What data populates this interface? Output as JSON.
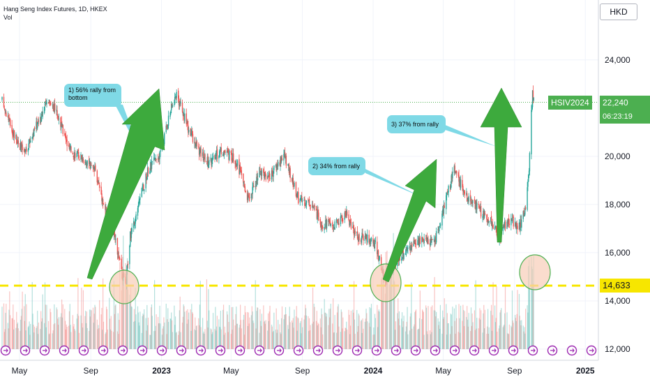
{
  "header": {
    "symbol_title": "Hang Seng Index Futures, 1D, HKEX",
    "volume_label": "Vol",
    "currency": "HKD"
  },
  "price_scale": {
    "ticks": [
      "24,000",
      "22,240",
      "20,000",
      "18,000",
      "16,000",
      "14,000",
      "12,000"
    ],
    "last_price": "22,240",
    "countdown": "06:23:19",
    "symbol_label": "HSIV2024",
    "support_level": "14,633"
  },
  "time_axis": {
    "labels": [
      "May",
      "Sep",
      "2023",
      "May",
      "Sep",
      "2024",
      "May",
      "Sep",
      "2025"
    ]
  },
  "annotations": [
    {
      "text": "1) 56% rally from bottom"
    },
    {
      "text": "2) 34% from rally"
    },
    {
      "text": "3) 37% from rally"
    }
  ],
  "colors": {
    "up": "#26a69a",
    "down": "#ef5350",
    "arrow": "#3daa3d",
    "support": "#f7e600",
    "note": "#7fd9e6",
    "circle_fill": "#f8cdb8",
    "circle_stroke": "#4caf50"
  },
  "chart_data": {
    "type": "candlestick",
    "title": "Hang Seng Index Futures, 1D, HKEX",
    "ylim": [
      11600,
      25200
    ],
    "x_range": [
      "2022-04-01",
      "2025-01-31"
    ],
    "horizontal_line": 14633,
    "series": [
      {
        "name": "Hang Seng Index Futures",
        "anchors": [
          [
            "2022-04-01",
            22300
          ],
          [
            "2022-04-20",
            21000
          ],
          [
            "2022-05-10",
            20100
          ],
          [
            "2022-06-01",
            21400
          ],
          [
            "2022-06-20",
            22400
          ],
          [
            "2022-07-05",
            21800
          ],
          [
            "2022-07-25",
            20300
          ],
          [
            "2022-08-20",
            19900
          ],
          [
            "2022-09-10",
            19300
          ],
          [
            "2022-09-28",
            17600
          ],
          [
            "2022-10-10",
            16900
          ],
          [
            "2022-10-24",
            15200
          ],
          [
            "2022-10-31",
            14600
          ],
          [
            "2022-11-08",
            16700
          ],
          [
            "2022-11-20",
            17800
          ],
          [
            "2022-12-10",
            19500
          ],
          [
            "2022-12-30",
            20100
          ],
          [
            "2023-01-15",
            21800
          ],
          [
            "2023-01-27",
            22600
          ],
          [
            "2023-02-15",
            21200
          ],
          [
            "2023-03-10",
            20100
          ],
          [
            "2023-03-25",
            19700
          ],
          [
            "2023-04-15",
            20300
          ],
          [
            "2023-05-10",
            19800
          ],
          [
            "2023-05-31",
            18200
          ],
          [
            "2023-06-20",
            19400
          ],
          [
            "2023-07-05",
            19100
          ],
          [
            "2023-07-31",
            20100
          ],
          [
            "2023-08-25",
            18200
          ],
          [
            "2023-09-15",
            18100
          ],
          [
            "2023-10-05",
            17200
          ],
          [
            "2023-10-25",
            17100
          ],
          [
            "2023-11-15",
            17600
          ],
          [
            "2023-12-05",
            16600
          ],
          [
            "2023-12-20",
            16700
          ],
          [
            "2024-01-05",
            16300
          ],
          [
            "2024-01-22",
            14800
          ],
          [
            "2024-02-10",
            15700
          ],
          [
            "2024-03-05",
            16200
          ],
          [
            "2024-03-25",
            16500
          ],
          [
            "2024-04-15",
            16400
          ],
          [
            "2024-04-30",
            17700
          ],
          [
            "2024-05-20",
            19500
          ],
          [
            "2024-06-10",
            18300
          ],
          [
            "2024-07-01",
            17800
          ],
          [
            "2024-07-25",
            17200
          ],
          [
            "2024-08-05",
            16500
          ],
          [
            "2024-08-20",
            17400
          ],
          [
            "2024-09-10",
            17100
          ],
          [
            "2024-09-20",
            17900
          ],
          [
            "2024-09-26",
            19600
          ],
          [
            "2024-10-02",
            22800
          ],
          [
            "2024-10-04",
            22240
          ]
        ]
      }
    ],
    "volume": {
      "visible": true,
      "colors": [
        "#ef5350",
        "#26a69a"
      ]
    }
  }
}
